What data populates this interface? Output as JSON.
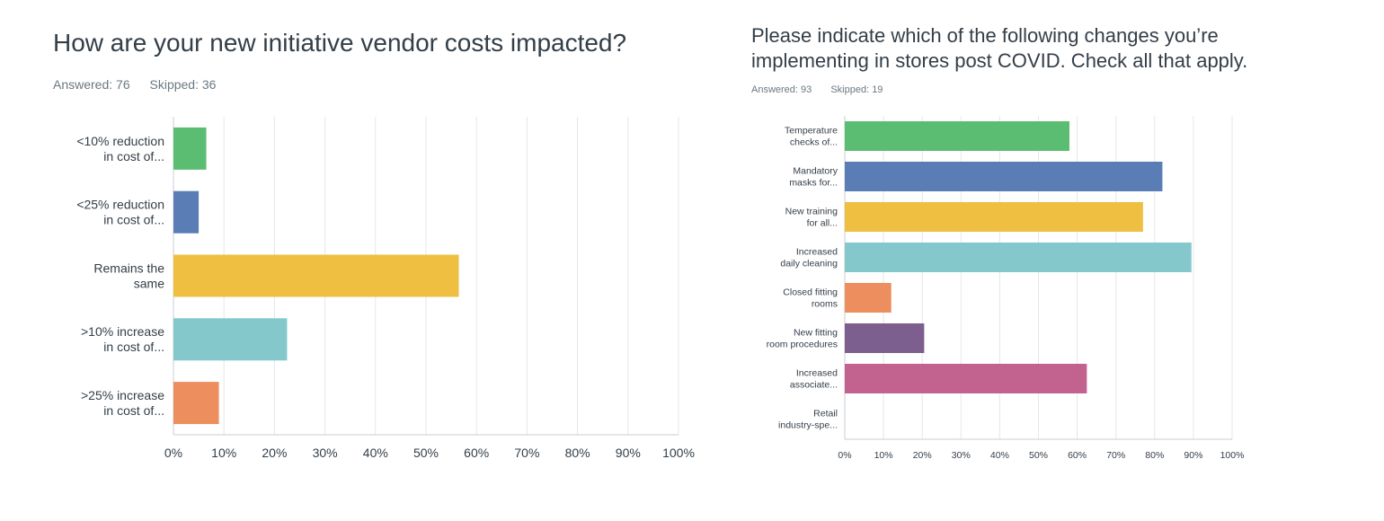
{
  "q1": {
    "title": "How are your new initiative vendor costs impacted?",
    "answered": "Answered: 76",
    "skipped": "Skipped: 36"
  },
  "q2": {
    "title_line1": "Please indicate which of the following changes you’re",
    "title_line2": "implementing in stores post COVID. Check all that apply.",
    "answered": "Answered: 93",
    "skipped": "Skipped: 19"
  },
  "chart_data": [
    {
      "type": "bar",
      "orientation": "horizontal",
      "title": "How are your new initiative vendor costs impacted?",
      "categories": [
        [
          "<10% reduction",
          "in cost of..."
        ],
        [
          "<25% reduction",
          "in cost of..."
        ],
        [
          "Remains the",
          "same"
        ],
        [
          ">10% increase",
          "in cost of..."
        ],
        [
          ">25% increase",
          "in cost of..."
        ]
      ],
      "values": [
        6.5,
        5,
        56.5,
        22.5,
        9
      ],
      "colors": [
        "#5bbd72",
        "#5a7db5",
        "#efbf41",
        "#84c8cc",
        "#ec8e5e"
      ],
      "xlim": [
        0,
        100
      ],
      "xticks": [
        "0%",
        "10%",
        "20%",
        "30%",
        "40%",
        "50%",
        "60%",
        "70%",
        "80%",
        "90%",
        "100%"
      ],
      "grid": true
    },
    {
      "type": "bar",
      "orientation": "horizontal",
      "title": "Please indicate which of the following changes you’re implementing in stores post COVID. Check all that apply.",
      "categories": [
        [
          "Temperature",
          "checks of..."
        ],
        [
          "Mandatory",
          "masks for..."
        ],
        [
          "New training",
          "for all..."
        ],
        [
          "Increased",
          "daily cleaning"
        ],
        [
          "Closed fitting",
          "rooms"
        ],
        [
          "New fitting",
          "room procedures"
        ],
        [
          "Increased",
          "associate..."
        ],
        [
          "Retail",
          "industry-spe..."
        ]
      ],
      "values": [
        58,
        82,
        77,
        89.5,
        12,
        20.5,
        62.5,
        0
      ],
      "colors": [
        "#5bbd72",
        "#5a7db5",
        "#efbf41",
        "#84c8cc",
        "#ec8e5e",
        "#7c5f8e",
        "#c2638f",
        "#999999"
      ],
      "xlim": [
        0,
        100
      ],
      "xticks": [
        "0%",
        "10%",
        "20%",
        "30%",
        "40%",
        "50%",
        "60%",
        "70%",
        "80%",
        "90%",
        "100%"
      ],
      "grid": true
    }
  ]
}
